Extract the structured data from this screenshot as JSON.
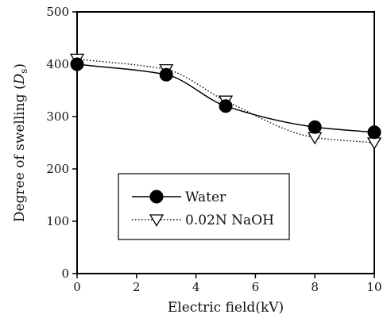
{
  "chart_data": {
    "type": "line",
    "title": "",
    "xlabel": "Electric field(kV)",
    "ylabel_prefix": "Degree of swelling (",
    "ylabel_symbol": "D",
    "ylabel_subscript": "s",
    "ylabel_suffix": ")",
    "xlim": [
      0,
      10
    ],
    "ylim": [
      0,
      500
    ],
    "x_ticks": [
      0,
      2,
      4,
      6,
      8,
      10
    ],
    "y_ticks": [
      0,
      100,
      200,
      300,
      400,
      500
    ],
    "grid": false,
    "legend_position": "lower-left",
    "series": [
      {
        "name": "Water",
        "marker": "filled-circle",
        "line_style": "solid",
        "color": "#000000",
        "x": [
          0,
          3,
          5,
          8,
          10
        ],
        "y": [
          400,
          380,
          320,
          280,
          270
        ]
      },
      {
        "name": "0.02N NaOH",
        "marker": "open-triangle-down",
        "line_style": "dotted",
        "color": "#000000",
        "x": [
          0,
          3,
          5,
          8,
          10
        ],
        "y": [
          410,
          390,
          330,
          260,
          250
        ]
      }
    ]
  }
}
